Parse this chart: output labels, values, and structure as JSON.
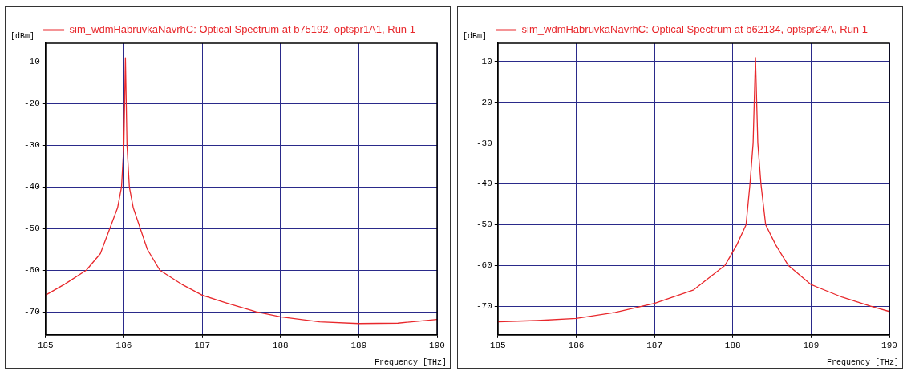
{
  "chart_data": [
    {
      "type": "line",
      "xlabel": "Frequency [THz]",
      "ylabel": "[dBm]",
      "legend": "top",
      "grid": true,
      "marker": "none",
      "xlim": [
        185,
        190
      ],
      "xticks": [
        185,
        186,
        187,
        188,
        189,
        190
      ],
      "ylim": [
        -75.5,
        -5.5
      ],
      "yticks": [
        -70,
        -60,
        -50,
        -40,
        -30,
        -20,
        -10
      ],
      "series": [
        {
          "name": "sim_wdmHabruvkaNavrhC: Optical Spectrum at b75192, optspr1A1, Run 1",
          "color": "#e8282c",
          "x": [
            185,
            185.25,
            185.52,
            185.7,
            185.82,
            185.92,
            185.97,
            186.0,
            186.02,
            186.04,
            186.07,
            186.12,
            186.21,
            186.3,
            186.46,
            186.75,
            187,
            187.3,
            187.69,
            188,
            188.5,
            189,
            189.5,
            190
          ],
          "values": [
            -66,
            -63.3,
            -60,
            -56,
            -50,
            -45,
            -40,
            -30,
            -9,
            -30,
            -40,
            -45,
            -50,
            -55,
            -60,
            -63.5,
            -66,
            -67.8,
            -70,
            -71.2,
            -72.4,
            -72.8,
            -72.7,
            -71.8
          ]
        }
      ]
    },
    {
      "type": "line",
      "xlabel": "Frequency [THz]",
      "ylabel": "[dBm]",
      "legend": "top",
      "grid": true,
      "marker": "none",
      "xlim": [
        185,
        190
      ],
      "xticks": [
        185,
        186,
        187,
        188,
        189,
        190
      ],
      "ylim": [
        -77,
        -5.5
      ],
      "yticks": [
        -70,
        -60,
        -50,
        -40,
        -30,
        -20,
        -10
      ],
      "series": [
        {
          "name": "sim_wdmHabruvkaNavrhC: Optical Spectrum at b62134, optspr24A, Run 1",
          "color": "#e8282c",
          "x": [
            185,
            185.5,
            186,
            186.5,
            187,
            187.5,
            187.9,
            188.05,
            188.17,
            188.22,
            188.26,
            188.29,
            188.32,
            188.36,
            188.42,
            188.55,
            188.71,
            189,
            189.4,
            189.76,
            190
          ],
          "values": [
            -73.8,
            -73.5,
            -73,
            -71.5,
            -69.3,
            -66,
            -60,
            -55,
            -50,
            -40,
            -30,
            -9,
            -30,
            -40,
            -50,
            -55,
            -60,
            -64.7,
            -67.8,
            -70,
            -71.3
          ]
        }
      ]
    }
  ]
}
